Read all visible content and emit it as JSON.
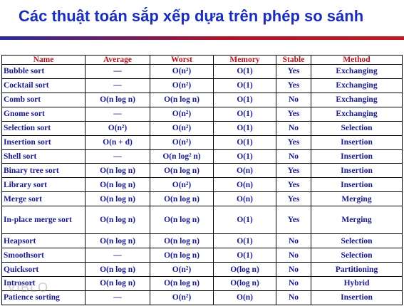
{
  "title": "Các thuật toán sắp xếp dựa trên phép so sánh",
  "watermark": "VIBLO",
  "table": {
    "headers": [
      "Name",
      "Average",
      "Worst",
      "Memory",
      "Stable",
      "Method"
    ],
    "rows": [
      [
        "Bubble sort",
        "—",
        "O(n²)",
        "O(1)",
        "Yes",
        "Exchanging"
      ],
      [
        "Cocktail sort",
        "—",
        "O(n²)",
        "O(1)",
        "Yes",
        "Exchanging"
      ],
      [
        "Comb sort",
        "O(n log n)",
        "O(n log n)",
        "O(1)",
        "No",
        "Exchanging"
      ],
      [
        "Gnome sort",
        "—",
        "O(n²)",
        "O(1)",
        "Yes",
        "Exchanging"
      ],
      [
        "Selection sort",
        "O(n²)",
        "O(n²)",
        "O(1)",
        "No",
        "Selection"
      ],
      [
        "Insertion sort",
        "O(n + d)",
        "O(n²)",
        "O(1)",
        "Yes",
        "Insertion"
      ],
      [
        "Shell sort",
        "—",
        "O(n log² n)",
        "O(1)",
        "No",
        "Insertion"
      ],
      [
        "Binary tree sort",
        "O(n log n)",
        "O(n log n)",
        "O(n)",
        "Yes",
        "Insertion"
      ],
      [
        "Library sort",
        "O(n log n)",
        "O(n²)",
        "O(n)",
        "Yes",
        "Insertion"
      ],
      [
        "Merge sort",
        "O(n log n)",
        "O(n log n)",
        "O(n)",
        "Yes",
        "Merging"
      ],
      [
        "In-place merge sort",
        "O(n log n)",
        "O(n log n)",
        "O(1)",
        "Yes",
        "Merging"
      ],
      [
        "Heapsort",
        "O(n log n)",
        "O(n log n)",
        "O(1)",
        "No",
        "Selection"
      ],
      [
        "Smoothsort",
        "—",
        "O(n log n)",
        "O(1)",
        "No",
        "Selection"
      ],
      [
        "Quicksort",
        "O(n log n)",
        "O(n²)",
        "O(log n)",
        "No",
        "Partitioning"
      ],
      [
        "Introsort",
        "O(n log n)",
        "O(n log n)",
        "O(log n)",
        "No",
        "Hybrid"
      ],
      [
        "Patience sorting",
        "—",
        "O(n²)",
        "O(n)",
        "No",
        "Insertion"
      ]
    ]
  }
}
